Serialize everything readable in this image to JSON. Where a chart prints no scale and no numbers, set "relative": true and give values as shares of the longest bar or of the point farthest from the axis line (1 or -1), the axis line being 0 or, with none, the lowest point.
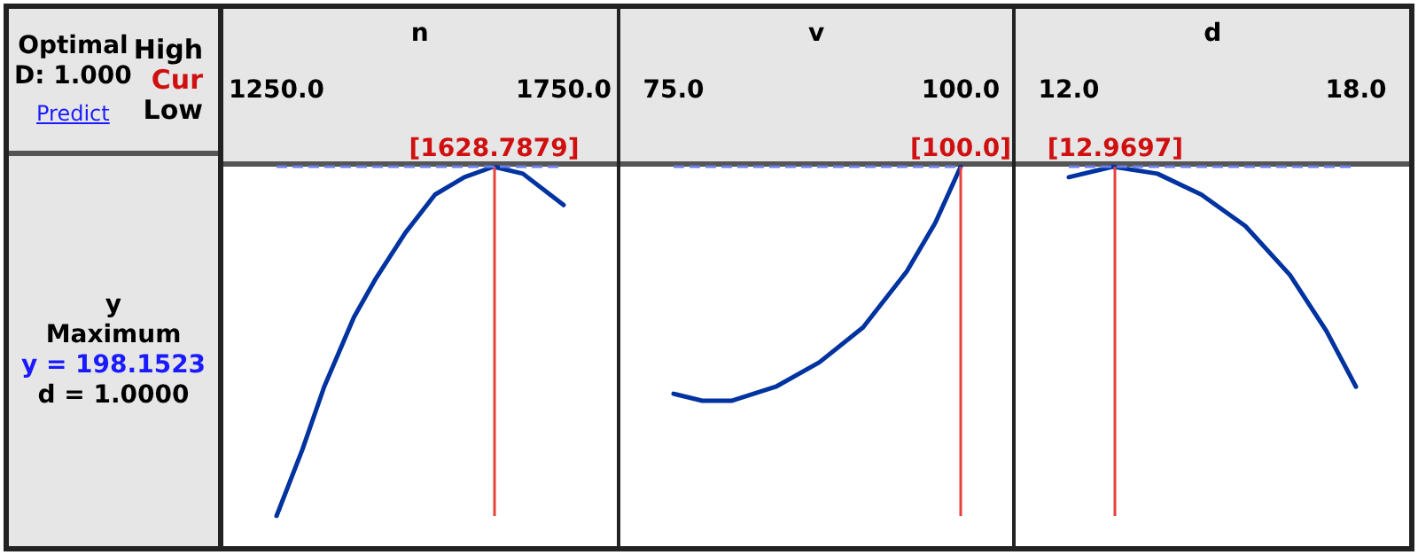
{
  "chart_data": [
    {
      "type": "other",
      "annotations": [
        "Optimal",
        "D: 1.000",
        "Predict",
        "High",
        "Cur",
        "Low",
        "y",
        "Maximum",
        "y = 198.1523",
        "d = 1.0000"
      ]
    },
    {
      "type": "line",
      "relative": true,
      "xlabel": "n",
      "xlim": [
        1250,
        1750
      ],
      "xticks": [
        {
          "value": 1250,
          "label": "1250.0"
        },
        {
          "value": 1750,
          "label": "1750.0"
        }
      ],
      "tick_labels": "x",
      "grid": false,
      "marker": "none",
      "line_style": "solid",
      "series": [
        {
          "color": "#0033a0",
          "x": [
            1250,
            1295,
            1333,
            1385,
            1423,
            1474,
            1526,
            1577,
            1628,
            1679,
            1750
          ],
          "values": [
            0,
            0.19,
            0.37,
            0.57,
            0.68,
            0.81,
            0.92,
            0.97,
            1.0,
            0.98,
            0.89
          ]
        }
      ],
      "ref_lines": [
        {
          "axis": "x",
          "value": 1628.7879,
          "label": "[1628.7879]",
          "color": "#e8403a",
          "line_style": "solid"
        },
        {
          "axis": "y",
          "value": 1,
          "label": null,
          "color": "#6b7fe8",
          "line_style": "dashed"
        }
      ]
    },
    {
      "type": "line",
      "relative": true,
      "xlabel": "v",
      "xlim": [
        75,
        100
      ],
      "xticks": [
        {
          "value": 75,
          "label": "75.0"
        },
        {
          "value": 100,
          "label": "100.0"
        }
      ],
      "tick_labels": "x",
      "grid": false,
      "marker": "none",
      "line_style": "solid",
      "series": [
        {
          "color": "#0033a0",
          "x": [
            75,
            77.5,
            80.1,
            83.9,
            87.7,
            91.5,
            95.3,
            97.8,
            100
          ],
          "values": [
            0.35,
            0.33,
            0.33,
            0.37,
            0.44,
            0.54,
            0.7,
            0.84,
            1.0
          ]
        }
      ],
      "ref_lines": [
        {
          "axis": "x",
          "value": 100.0,
          "label": "[100.0]",
          "color": "#e8403a",
          "line_style": "solid"
        },
        {
          "axis": "y",
          "value": 1,
          "label": null,
          "color": "#6b7fe8",
          "line_style": "dashed"
        }
      ]
    },
    {
      "type": "line",
      "relative": true,
      "xlabel": "d",
      "xlim": [
        12,
        18
      ],
      "xticks": [
        {
          "value": 12,
          "label": "12.0"
        },
        {
          "value": 18,
          "label": "18.0"
        }
      ],
      "tick_labels": "x",
      "grid": false,
      "marker": "none",
      "line_style": "solid",
      "series": [
        {
          "color": "#0033a0",
          "x": [
            12,
            12.92,
            13.85,
            14.77,
            15.69,
            16.62,
            17.38,
            18
          ],
          "values": [
            0.97,
            1.0,
            0.98,
            0.92,
            0.83,
            0.69,
            0.53,
            0.37
          ]
        }
      ],
      "ref_lines": [
        {
          "axis": "x",
          "value": 12.9697,
          "label": "[12.9697]",
          "color": "#e8403a",
          "line_style": "solid"
        },
        {
          "axis": "y",
          "value": 1,
          "label": null,
          "color": "#6b7fe8",
          "line_style": "dashed"
        }
      ]
    }
  ]
}
